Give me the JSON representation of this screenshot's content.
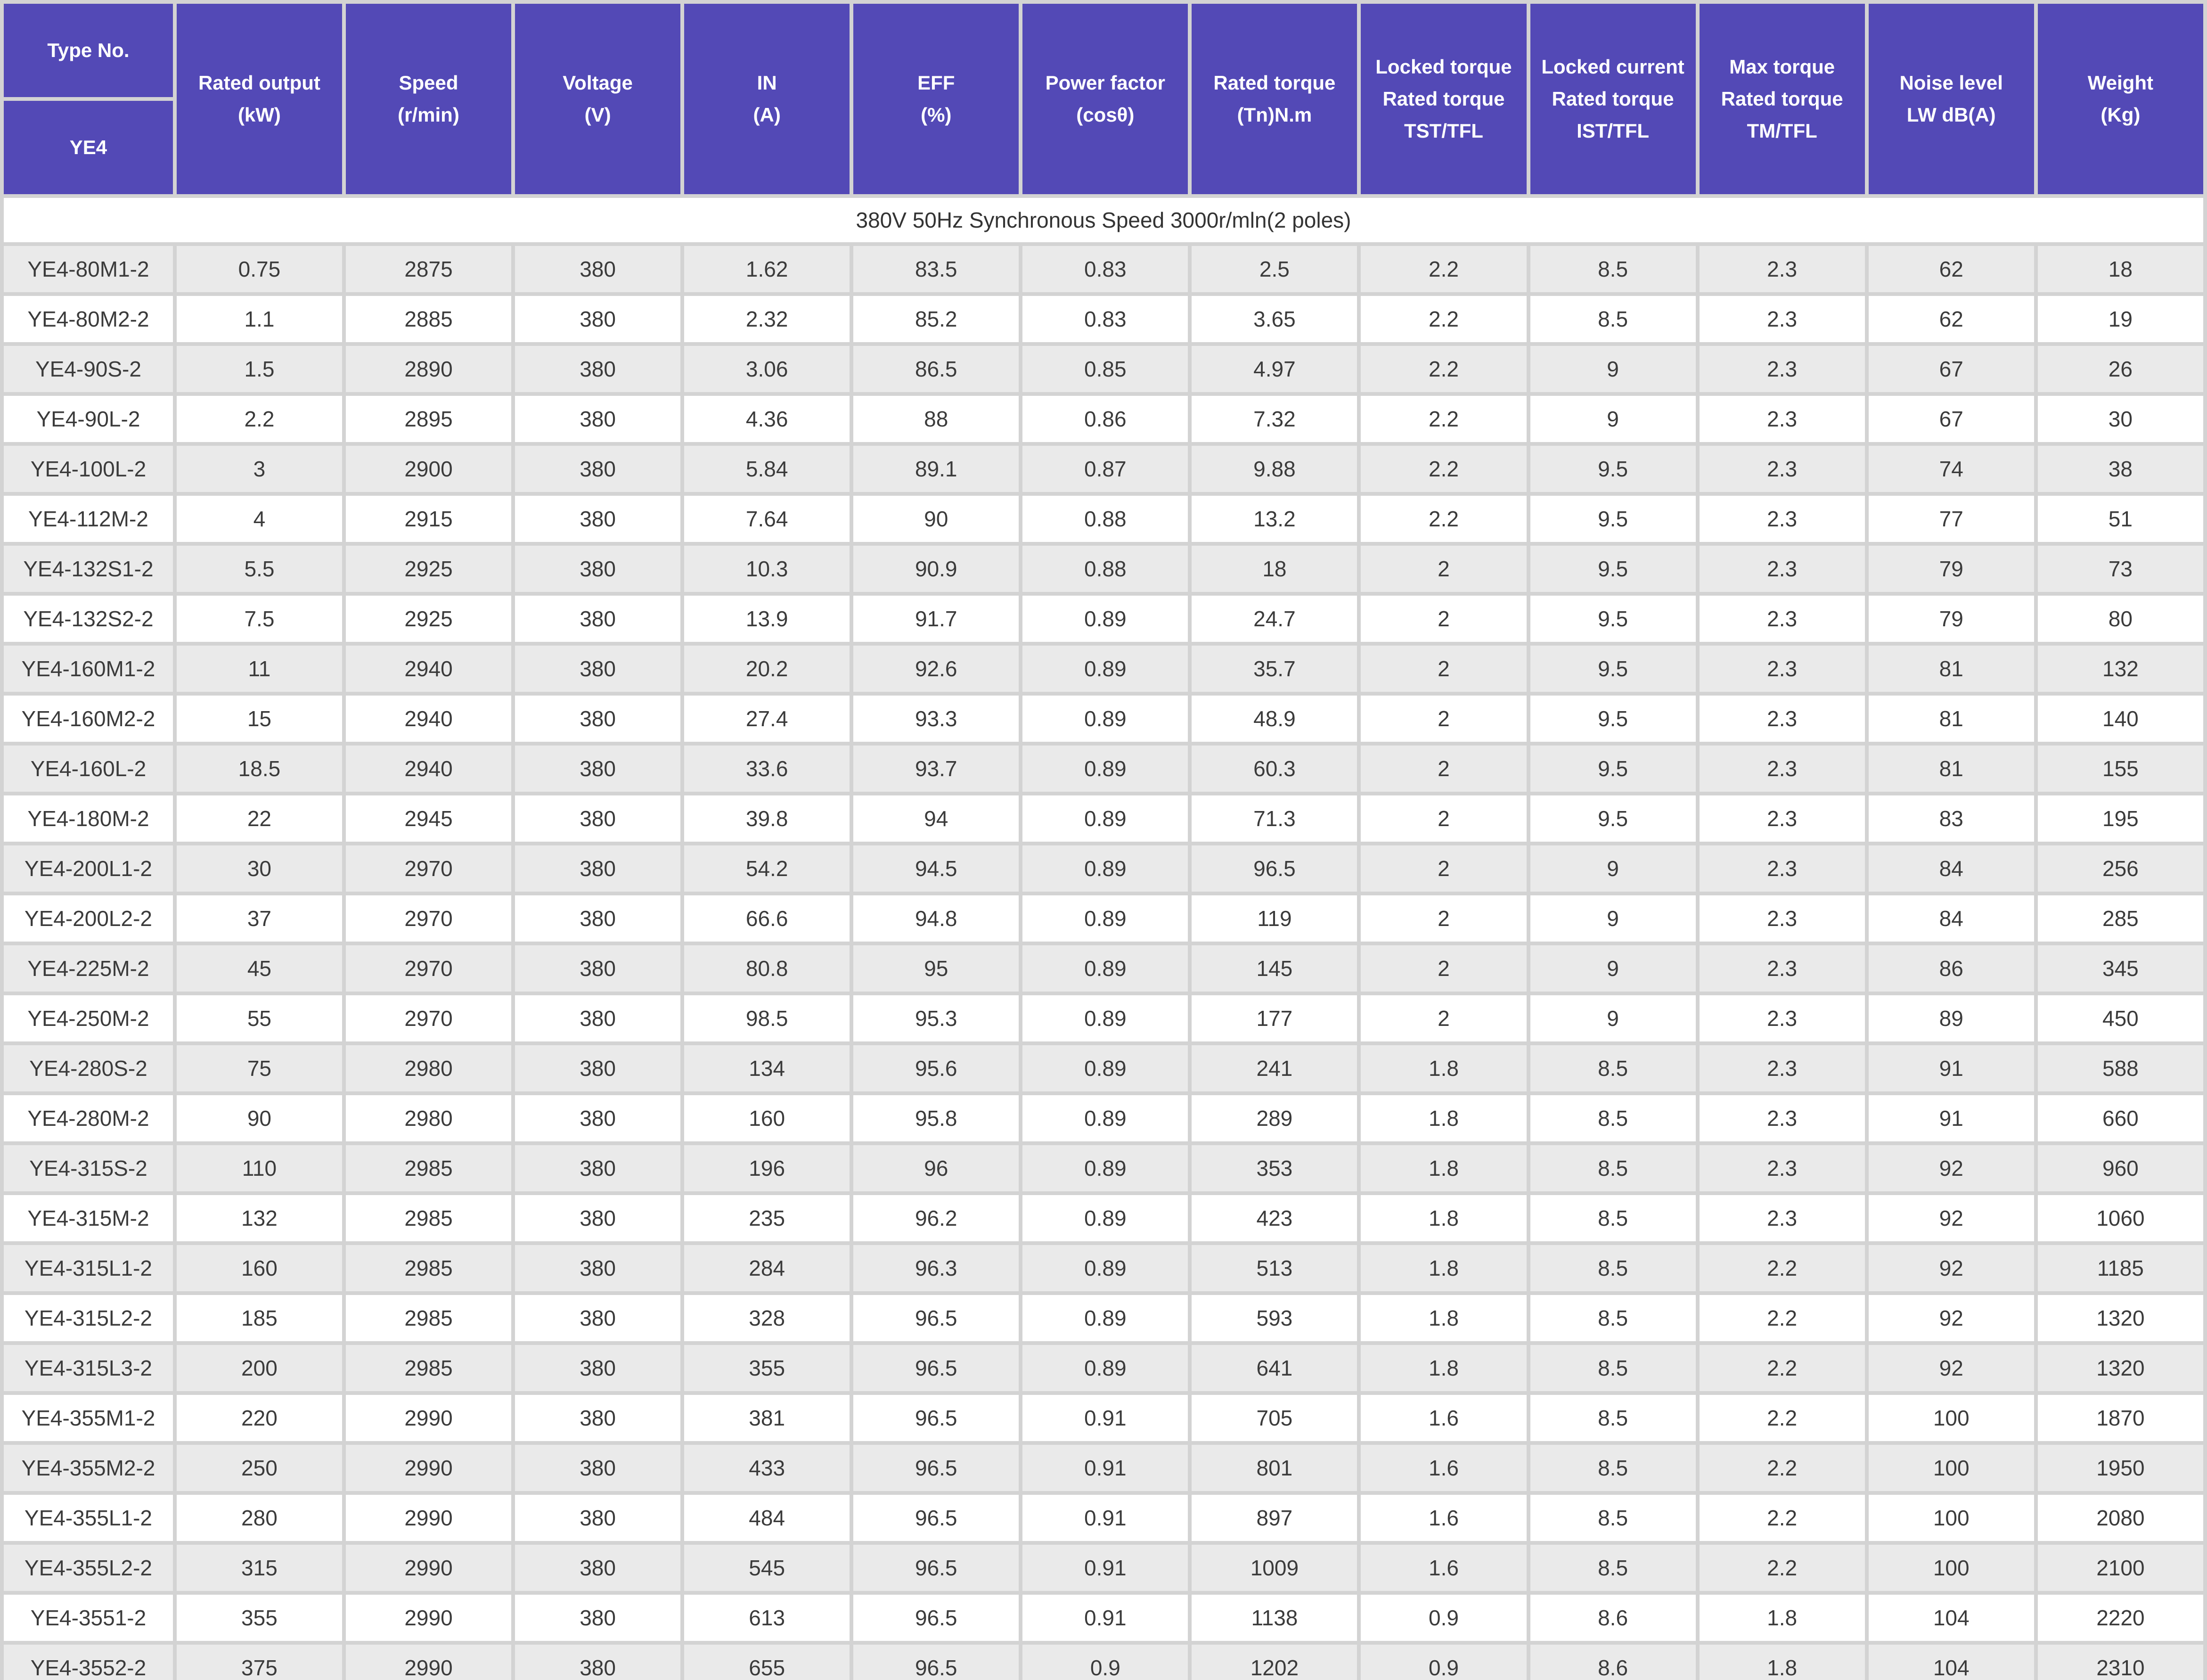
{
  "table": {
    "colors": {
      "header_bg": "#5349b6",
      "grid": "#d3d3d3",
      "row_alt_bg": "#eaeaea",
      "row_base_bg": "#ffffff",
      "text": "#3b3b3b"
    },
    "header": {
      "col1": {
        "top": "Type No.",
        "bottom": "YE4",
        "slug": "type-no"
      },
      "columns": [
        {
          "slug": "rated-output",
          "lines": [
            "Rated output",
            "(kW)"
          ]
        },
        {
          "slug": "speed",
          "lines": [
            "Speed",
            "(r/min)"
          ]
        },
        {
          "slug": "voltage",
          "lines": [
            "Voltage",
            "(V)"
          ]
        },
        {
          "slug": "in-current",
          "lines": [
            "IN",
            "(A)"
          ]
        },
        {
          "slug": "eff",
          "lines": [
            "EFF",
            "(%)"
          ]
        },
        {
          "slug": "power-factor",
          "lines": [
            "Power factor",
            "(cosθ)"
          ]
        },
        {
          "slug": "rated-torque",
          "lines": [
            "Rated torque",
            "(Tn)N.m"
          ]
        },
        {
          "slug": "locked-torque",
          "lines": [
            "Locked torque",
            "Rated torque",
            "TST/TFL"
          ]
        },
        {
          "slug": "locked-current",
          "lines": [
            "Locked current",
            "Rated torque",
            "IST/TFL"
          ]
        },
        {
          "slug": "max-torque",
          "lines": [
            "Max torque",
            "Rated torque",
            "TM/TFL"
          ]
        },
        {
          "slug": "noise-level",
          "lines": [
            "Noise level",
            "LW dB(A)"
          ]
        },
        {
          "slug": "weight",
          "lines": [
            "Weight",
            "(Kg)"
          ]
        }
      ]
    },
    "section_row": "380V 50Hz Synchronous Speed 3000r/mln(2 poles)",
    "rows": [
      [
        "YE4-80M1-2",
        "0.75",
        "2875",
        "380",
        "1.62",
        "83.5",
        "0.83",
        "2.5",
        "2.2",
        "8.5",
        "2.3",
        "62",
        "18"
      ],
      [
        "YE4-80M2-2",
        "1.1",
        "2885",
        "380",
        "2.32",
        "85.2",
        "0.83",
        "3.65",
        "2.2",
        "8.5",
        "2.3",
        "62",
        "19"
      ],
      [
        "YE4-90S-2",
        "1.5",
        "2890",
        "380",
        "3.06",
        "86.5",
        "0.85",
        "4.97",
        "2.2",
        "9",
        "2.3",
        "67",
        "26"
      ],
      [
        "YE4-90L-2",
        "2.2",
        "2895",
        "380",
        "4.36",
        "88",
        "0.86",
        "7.32",
        "2.2",
        "9",
        "2.3",
        "67",
        "30"
      ],
      [
        "YE4-100L-2",
        "3",
        "2900",
        "380",
        "5.84",
        "89.1",
        "0.87",
        "9.88",
        "2.2",
        "9.5",
        "2.3",
        "74",
        "38"
      ],
      [
        "YE4-112M-2",
        "4",
        "2915",
        "380",
        "7.64",
        "90",
        "0.88",
        "13.2",
        "2.2",
        "9.5",
        "2.3",
        "77",
        "51"
      ],
      [
        "YE4-132S1-2",
        "5.5",
        "2925",
        "380",
        "10.3",
        "90.9",
        "0.88",
        "18",
        "2",
        "9.5",
        "2.3",
        "79",
        "73"
      ],
      [
        "YE4-132S2-2",
        "7.5",
        "2925",
        "380",
        "13.9",
        "91.7",
        "0.89",
        "24.7",
        "2",
        "9.5",
        "2.3",
        "79",
        "80"
      ],
      [
        "YE4-160M1-2",
        "11",
        "2940",
        "380",
        "20.2",
        "92.6",
        "0.89",
        "35.7",
        "2",
        "9.5",
        "2.3",
        "81",
        "132"
      ],
      [
        "YE4-160M2-2",
        "15",
        "2940",
        "380",
        "27.4",
        "93.3",
        "0.89",
        "48.9",
        "2",
        "9.5",
        "2.3",
        "81",
        "140"
      ],
      [
        "YE4-160L-2",
        "18.5",
        "2940",
        "380",
        "33.6",
        "93.7",
        "0.89",
        "60.3",
        "2",
        "9.5",
        "2.3",
        "81",
        "155"
      ],
      [
        "YE4-180M-2",
        "22",
        "2945",
        "380",
        "39.8",
        "94",
        "0.89",
        "71.3",
        "2",
        "9.5",
        "2.3",
        "83",
        "195"
      ],
      [
        "YE4-200L1-2",
        "30",
        "2970",
        "380",
        "54.2",
        "94.5",
        "0.89",
        "96.5",
        "2",
        "9",
        "2.3",
        "84",
        "256"
      ],
      [
        "YE4-200L2-2",
        "37",
        "2970",
        "380",
        "66.6",
        "94.8",
        "0.89",
        "119",
        "2",
        "9",
        "2.3",
        "84",
        "285"
      ],
      [
        "YE4-225M-2",
        "45",
        "2970",
        "380",
        "80.8",
        "95",
        "0.89",
        "145",
        "2",
        "9",
        "2.3",
        "86",
        "345"
      ],
      [
        "YE4-250M-2",
        "55",
        "2970",
        "380",
        "98.5",
        "95.3",
        "0.89",
        "177",
        "2",
        "9",
        "2.3",
        "89",
        "450"
      ],
      [
        "YE4-280S-2",
        "75",
        "2980",
        "380",
        "134",
        "95.6",
        "0.89",
        "241",
        "1.8",
        "8.5",
        "2.3",
        "91",
        "588"
      ],
      [
        "YE4-280M-2",
        "90",
        "2980",
        "380",
        "160",
        "95.8",
        "0.89",
        "289",
        "1.8",
        "8.5",
        "2.3",
        "91",
        "660"
      ],
      [
        "YE4-315S-2",
        "110",
        "2985",
        "380",
        "196",
        "96",
        "0.89",
        "353",
        "1.8",
        "8.5",
        "2.3",
        "92",
        "960"
      ],
      [
        "YE4-315M-2",
        "132",
        "2985",
        "380",
        "235",
        "96.2",
        "0.89",
        "423",
        "1.8",
        "8.5",
        "2.3",
        "92",
        "1060"
      ],
      [
        "YE4-315L1-2",
        "160",
        "2985",
        "380",
        "284",
        "96.3",
        "0.89",
        "513",
        "1.8",
        "8.5",
        "2.2",
        "92",
        "1185"
      ],
      [
        "YE4-315L2-2",
        "185",
        "2985",
        "380",
        "328",
        "96.5",
        "0.89",
        "593",
        "1.8",
        "8.5",
        "2.2",
        "92",
        "1320"
      ],
      [
        "YE4-315L3-2",
        "200",
        "2985",
        "380",
        "355",
        "96.5",
        "0.89",
        "641",
        "1.8",
        "8.5",
        "2.2",
        "92",
        "1320"
      ],
      [
        "YE4-355M1-2",
        "220",
        "2990",
        "380",
        "381",
        "96.5",
        "0.91",
        "705",
        "1.6",
        "8.5",
        "2.2",
        "100",
        "1870"
      ],
      [
        "YE4-355M2-2",
        "250",
        "2990",
        "380",
        "433",
        "96.5",
        "0.91",
        "801",
        "1.6",
        "8.5",
        "2.2",
        "100",
        "1950"
      ],
      [
        "YE4-355L1-2",
        "280",
        "2990",
        "380",
        "484",
        "96.5",
        "0.91",
        "897",
        "1.6",
        "8.5",
        "2.2",
        "100",
        "2080"
      ],
      [
        "YE4-355L2-2",
        "315",
        "2990",
        "380",
        "545",
        "96.5",
        "0.91",
        "1009",
        "1.6",
        "8.5",
        "2.2",
        "100",
        "2100"
      ],
      [
        "YE4-3551-2",
        "355",
        "2990",
        "380",
        "613",
        "96.5",
        "0.91",
        "1138",
        "0.9",
        "8.6",
        "1.8",
        "104",
        "2220"
      ],
      [
        "YE4-3552-2",
        "375",
        "2990",
        "380",
        "655",
        "96.5",
        "0.9",
        "1202",
        "0.9",
        "8.6",
        "1.8",
        "104",
        "2310"
      ]
    ]
  }
}
